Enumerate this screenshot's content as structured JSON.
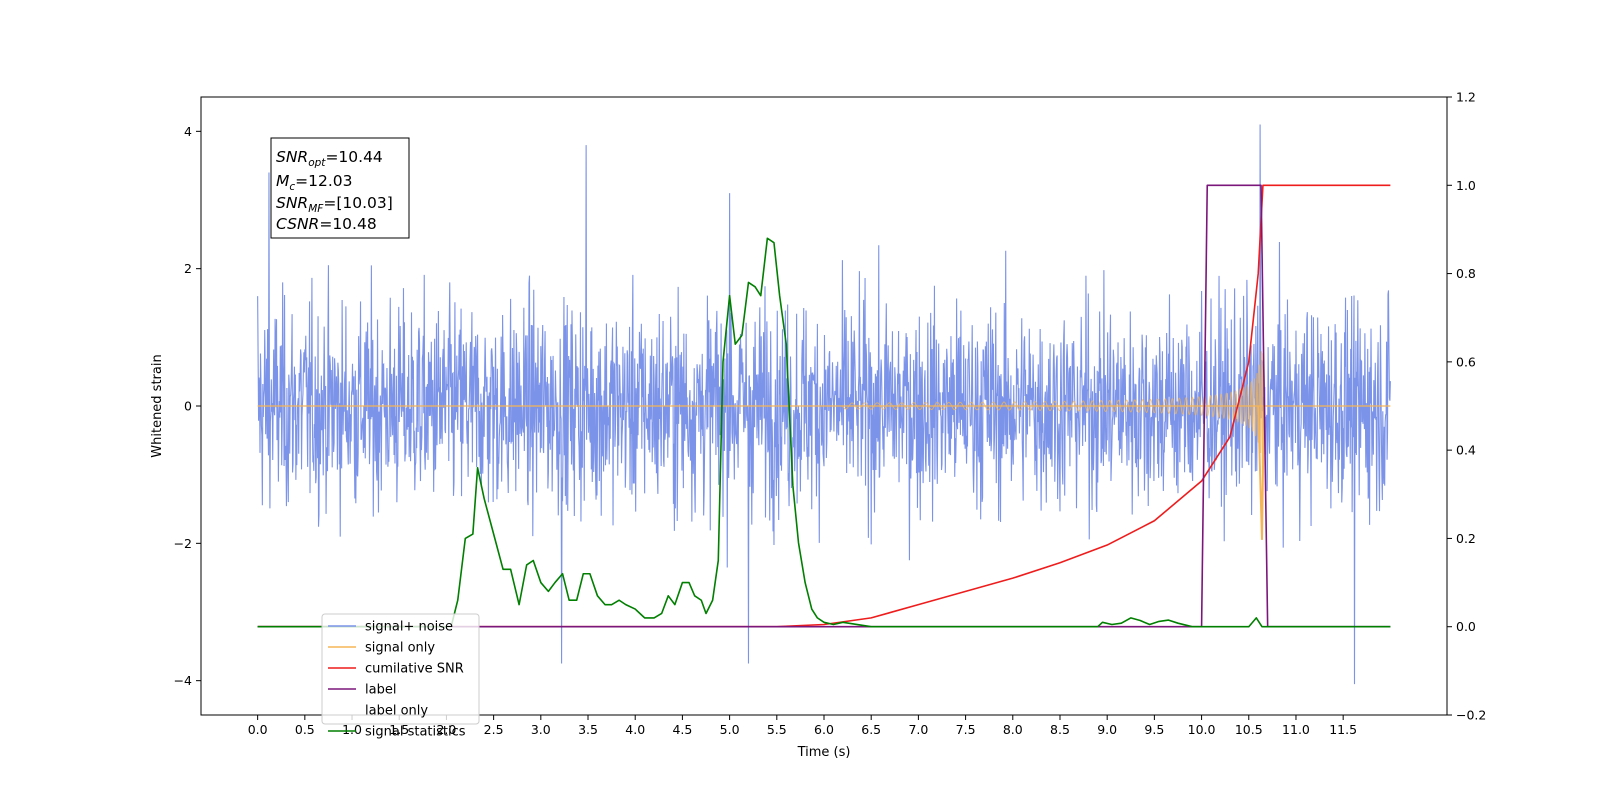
{
  "chart_data": {
    "type": "line",
    "xlabel": "Time (s)",
    "ylabel": "Whitened strain",
    "xlim": [
      -0.6,
      12.6
    ],
    "ylim": [
      -4.5,
      4.5
    ],
    "y2lim": [
      -0.2,
      1.2
    ],
    "grid": false,
    "legend_position": "lower-left",
    "x_ticks": [
      "0.0",
      "0.5",
      "1.0",
      "1.5",
      "2.0",
      "2.5",
      "3.0",
      "3.5",
      "4.0",
      "4.5",
      "5.0",
      "5.5",
      "6.0",
      "6.5",
      "7.0",
      "7.5",
      "8.0",
      "8.5",
      "9.0",
      "9.5",
      "10.0",
      "10.5",
      "11.0",
      "11.5"
    ],
    "y_ticks": [
      "−4",
      "−2",
      "0",
      "2",
      "4"
    ],
    "y2_ticks": [
      "−0.2",
      "0.0",
      "0.2",
      "0.4",
      "0.6",
      "0.8",
      "1.0",
      "1.2"
    ],
    "annotation": {
      "snr_opt": {
        "sym": "SNR",
        "sub": "opt",
        "val": "=10.44"
      },
      "mc": {
        "sym": "M",
        "sub": "c",
        "val": "=12.03"
      },
      "snr_mf": {
        "sym": "SNR",
        "sub": "MF",
        "val": "=[10.03]"
      },
      "csnr": {
        "sym": "CSNR",
        "sub": "",
        "val": "=10.48"
      }
    },
    "series": [
      {
        "name": "signal+ noise",
        "color": "#7b93e8",
        "axis": "left",
        "description_range": "noisy whitened strain spanning 0.0 to 12.0 s, mostly within ±2.5",
        "notable_points": [
          [
            0.0,
            1.6
          ],
          [
            0.12,
            3.4
          ],
          [
            3.48,
            3.8
          ],
          [
            5.0,
            3.1
          ],
          [
            10.62,
            4.1
          ],
          [
            11.62,
            -4.05
          ],
          [
            3.22,
            -3.75
          ],
          [
            5.2,
            -3.75
          ]
        ],
        "envelope": 2.2,
        "x_range": [
          0.0,
          12.0
        ]
      },
      {
        "name": "signal only",
        "color": "#f5b556",
        "axis": "left",
        "chirp_start": 6.2,
        "chirp_end": 10.65,
        "peak_amplitude": 2.2
      },
      {
        "name": "cumilative SNR",
        "color": "#ee1c1c",
        "axis": "right",
        "points": [
          [
            0.0,
            0.0
          ],
          [
            5.5,
            0.0
          ],
          [
            6.0,
            0.005
          ],
          [
            6.5,
            0.02
          ],
          [
            7.0,
            0.05
          ],
          [
            7.5,
            0.08
          ],
          [
            8.0,
            0.11
          ],
          [
            8.5,
            0.145
          ],
          [
            9.0,
            0.185
          ],
          [
            9.5,
            0.24
          ],
          [
            10.0,
            0.33
          ],
          [
            10.3,
            0.43
          ],
          [
            10.5,
            0.6
          ],
          [
            10.6,
            0.8
          ],
          [
            10.65,
            1.0
          ],
          [
            12.0,
            1.0
          ]
        ]
      },
      {
        "name": "label",
        "color": "#7b167b",
        "axis": "right",
        "points": [
          [
            0.0,
            0.0
          ],
          [
            10.0,
            0.0
          ],
          [
            10.06,
            1.0
          ],
          [
            10.63,
            1.0
          ],
          [
            10.7,
            0.0
          ],
          [
            12.0,
            0.0
          ]
        ]
      },
      {
        "name": "label only",
        "color": "#8a8a8a",
        "axis": "right",
        "hidden": true
      },
      {
        "name": "signal statistics",
        "color": "#007f00",
        "axis": "right",
        "points": [
          [
            0.0,
            0.0
          ],
          [
            2.05,
            0.0
          ],
          [
            2.12,
            0.06
          ],
          [
            2.2,
            0.2
          ],
          [
            2.28,
            0.21
          ],
          [
            2.33,
            0.36
          ],
          [
            2.4,
            0.29
          ],
          [
            2.5,
            0.21
          ],
          [
            2.6,
            0.13
          ],
          [
            2.68,
            0.13
          ],
          [
            2.77,
            0.05
          ],
          [
            2.85,
            0.14
          ],
          [
            2.92,
            0.15
          ],
          [
            3.0,
            0.1
          ],
          [
            3.08,
            0.08
          ],
          [
            3.15,
            0.1
          ],
          [
            3.23,
            0.12
          ],
          [
            3.3,
            0.06
          ],
          [
            3.38,
            0.06
          ],
          [
            3.45,
            0.12
          ],
          [
            3.52,
            0.12
          ],
          [
            3.6,
            0.07
          ],
          [
            3.68,
            0.05
          ],
          [
            3.75,
            0.05
          ],
          [
            3.83,
            0.06
          ],
          [
            3.9,
            0.05
          ],
          [
            4.0,
            0.04
          ],
          [
            4.1,
            0.02
          ],
          [
            4.2,
            0.02
          ],
          [
            4.28,
            0.03
          ],
          [
            4.35,
            0.07
          ],
          [
            4.42,
            0.05
          ],
          [
            4.5,
            0.1
          ],
          [
            4.57,
            0.1
          ],
          [
            4.63,
            0.07
          ],
          [
            4.7,
            0.06
          ],
          [
            4.75,
            0.03
          ],
          [
            4.82,
            0.06
          ],
          [
            4.88,
            0.15
          ],
          [
            4.93,
            0.6
          ],
          [
            5.0,
            0.75
          ],
          [
            5.06,
            0.64
          ],
          [
            5.13,
            0.66
          ],
          [
            5.2,
            0.78
          ],
          [
            5.27,
            0.77
          ],
          [
            5.33,
            0.75
          ],
          [
            5.4,
            0.88
          ],
          [
            5.47,
            0.87
          ],
          [
            5.53,
            0.75
          ],
          [
            5.6,
            0.64
          ],
          [
            5.67,
            0.32
          ],
          [
            5.73,
            0.19
          ],
          [
            5.8,
            0.1
          ],
          [
            5.87,
            0.04
          ],
          [
            5.93,
            0.02
          ],
          [
            6.0,
            0.01
          ],
          [
            6.1,
            0.005
          ],
          [
            6.2,
            0.01
          ],
          [
            6.5,
            0.0
          ],
          [
            8.9,
            0.0
          ],
          [
            8.95,
            0.01
          ],
          [
            9.05,
            0.005
          ],
          [
            9.15,
            0.008
          ],
          [
            9.25,
            0.02
          ],
          [
            9.35,
            0.014
          ],
          [
            9.45,
            0.005
          ],
          [
            9.55,
            0.012
          ],
          [
            9.65,
            0.015
          ],
          [
            9.75,
            0.008
          ],
          [
            9.9,
            0.0
          ],
          [
            10.5,
            0.0
          ],
          [
            10.58,
            0.02
          ],
          [
            10.64,
            0.0
          ],
          [
            12.0,
            0.0
          ]
        ]
      }
    ]
  }
}
